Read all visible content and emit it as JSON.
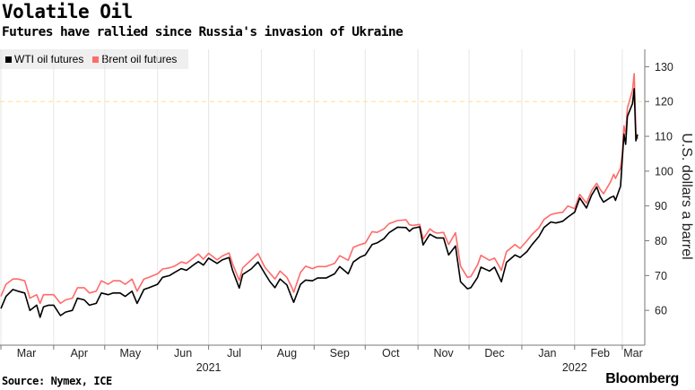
{
  "title": "Volatile Oil",
  "subtitle": "Futures have rallied since Russia's invasion of Ukraine",
  "source": "Source: Nymex, ICE",
  "brand": "Bloomberg",
  "colors": {
    "wti": "#000000",
    "brent": "#ff6b6b",
    "reference_line": "#ffe08a",
    "grid": "#e6e6e6"
  },
  "chart_data": {
    "type": "line",
    "title": "Volatile Oil",
    "subtitle": "Futures have rallied since Russia's invasion of Ukraine",
    "ylabel": "U.S. dollars a barrel",
    "ylim": [
      50,
      135
    ],
    "yticks": [
      60,
      70,
      80,
      90,
      100,
      110,
      120,
      130
    ],
    "y_axis_side": "right",
    "reference_line": 120,
    "grid": "vertical",
    "legend": "top-left",
    "xlim": [
      "2021-03-01",
      "2022-03-10"
    ],
    "month_ticks": [
      {
        "label": "Mar",
        "date": "2021-03-01"
      },
      {
        "label": "Apr",
        "date": "2021-04-01"
      },
      {
        "label": "May",
        "date": "2021-05-01"
      },
      {
        "label": "Jun",
        "date": "2021-06-01"
      },
      {
        "label": "Jul",
        "date": "2021-07-01"
      },
      {
        "label": "Aug",
        "date": "2021-08-01"
      },
      {
        "label": "Sep",
        "date": "2021-09-01"
      },
      {
        "label": "Oct",
        "date": "2021-10-01"
      },
      {
        "label": "Nov",
        "date": "2021-11-01"
      },
      {
        "label": "Dec",
        "date": "2021-12-01"
      },
      {
        "label": "Jan",
        "date": "2022-01-01"
      },
      {
        "label": "Feb",
        "date": "2022-02-01"
      },
      {
        "label": "Mar",
        "date": "2022-03-01"
      }
    ],
    "year_labels": [
      {
        "label": "2021",
        "date": "2021-07-01"
      },
      {
        "label": "2022",
        "date": "2022-02-01"
      }
    ],
    "series": [
      {
        "name": "WTI oil futures",
        "color": "#000000",
        "points": [
          [
            "2021-03-01",
            60.5
          ],
          [
            "2021-03-04",
            64
          ],
          [
            "2021-03-08",
            66
          ],
          [
            "2021-03-11",
            65.5
          ],
          [
            "2021-03-15",
            65
          ],
          [
            "2021-03-18",
            60
          ],
          [
            "2021-03-22",
            61.5
          ],
          [
            "2021-03-24",
            58
          ],
          [
            "2021-03-26",
            61
          ],
          [
            "2021-03-29",
            61.5
          ],
          [
            "2021-04-01",
            61.5
          ],
          [
            "2021-04-05",
            58.5
          ],
          [
            "2021-04-08",
            59.5
          ],
          [
            "2021-04-12",
            60
          ],
          [
            "2021-04-15",
            63.5
          ],
          [
            "2021-04-19",
            63
          ],
          [
            "2021-04-22",
            61.5
          ],
          [
            "2021-04-26",
            62
          ],
          [
            "2021-04-29",
            65
          ],
          [
            "2021-05-03",
            64.5
          ],
          [
            "2021-05-06",
            65
          ],
          [
            "2021-05-10",
            65
          ],
          [
            "2021-05-13",
            64
          ],
          [
            "2021-05-17",
            65.5
          ],
          [
            "2021-05-20",
            62
          ],
          [
            "2021-05-24",
            66
          ],
          [
            "2021-05-27",
            66.5
          ],
          [
            "2021-06-01",
            67.5
          ],
          [
            "2021-06-04",
            69.5
          ],
          [
            "2021-06-08",
            70
          ],
          [
            "2021-06-11",
            70.9
          ],
          [
            "2021-06-15",
            72
          ],
          [
            "2021-06-18",
            71.5
          ],
          [
            "2021-06-22",
            73
          ],
          [
            "2021-06-25",
            74
          ],
          [
            "2021-06-28",
            73
          ],
          [
            "2021-07-01",
            75
          ],
          [
            "2021-07-06",
            73.5
          ],
          [
            "2021-07-09",
            74.5
          ],
          [
            "2021-07-13",
            75.2
          ],
          [
            "2021-07-15",
            71.6
          ],
          [
            "2021-07-19",
            66.4
          ],
          [
            "2021-07-21",
            70.3
          ],
          [
            "2021-07-26",
            71.9
          ],
          [
            "2021-07-30",
            73.9
          ],
          [
            "2021-08-03",
            70.6
          ],
          [
            "2021-08-06",
            68.3
          ],
          [
            "2021-08-09",
            66.5
          ],
          [
            "2021-08-12",
            69
          ],
          [
            "2021-08-16",
            67.3
          ],
          [
            "2021-08-19",
            63.5
          ],
          [
            "2021-08-20",
            62.3
          ],
          [
            "2021-08-24",
            67.5
          ],
          [
            "2021-08-27",
            68.7
          ],
          [
            "2021-08-31",
            68.5
          ],
          [
            "2021-09-03",
            69.3
          ],
          [
            "2021-09-08",
            69.3
          ],
          [
            "2021-09-13",
            70.5
          ],
          [
            "2021-09-16",
            72.6
          ],
          [
            "2021-09-21",
            70.5
          ],
          [
            "2021-09-24",
            73.9
          ],
          [
            "2021-09-28",
            75.3
          ],
          [
            "2021-10-01",
            75.9
          ],
          [
            "2021-10-05",
            78.9
          ],
          [
            "2021-10-08",
            79.4
          ],
          [
            "2021-10-12",
            80.6
          ],
          [
            "2021-10-15",
            82.3
          ],
          [
            "2021-10-20",
            83.9
          ],
          [
            "2021-10-25",
            83.8
          ],
          [
            "2021-10-27",
            82.7
          ],
          [
            "2021-10-29",
            83.6
          ],
          [
            "2021-11-02",
            84
          ],
          [
            "2021-11-04",
            78.8
          ],
          [
            "2021-11-08",
            81.9
          ],
          [
            "2021-11-10",
            81.3
          ],
          [
            "2021-11-12",
            80.8
          ],
          [
            "2021-11-16",
            80.8
          ],
          [
            "2021-11-19",
            75.9
          ],
          [
            "2021-11-23",
            78.5
          ],
          [
            "2021-11-26",
            68.2
          ],
          [
            "2021-11-30",
            66.2
          ],
          [
            "2021-12-02",
            66.5
          ],
          [
            "2021-12-06",
            69.5
          ],
          [
            "2021-12-08",
            72.4
          ],
          [
            "2021-12-13",
            71.3
          ],
          [
            "2021-12-16",
            72.4
          ],
          [
            "2021-12-20",
            68.2
          ],
          [
            "2021-12-23",
            73.8
          ],
          [
            "2021-12-28",
            75.9
          ],
          [
            "2021-12-31",
            75.2
          ],
          [
            "2022-01-04",
            76.9
          ],
          [
            "2022-01-07",
            78.9
          ],
          [
            "2022-01-11",
            81.2
          ],
          [
            "2022-01-14",
            83.8
          ],
          [
            "2022-01-18",
            85.4
          ],
          [
            "2022-01-21",
            85.1
          ],
          [
            "2022-01-25",
            85.6
          ],
          [
            "2022-01-28",
            86.8
          ],
          [
            "2022-02-01",
            88.2
          ],
          [
            "2022-02-04",
            92.3
          ],
          [
            "2022-02-08",
            89.4
          ],
          [
            "2022-02-11",
            93.1
          ],
          [
            "2022-02-14",
            95.5
          ],
          [
            "2022-02-16",
            92.7
          ],
          [
            "2022-02-18",
            91.1
          ],
          [
            "2022-02-22",
            92.4
          ],
          [
            "2022-02-24",
            92.8
          ],
          [
            "2022-02-25",
            91.6
          ],
          [
            "2022-02-28",
            95.7
          ],
          [
            "2022-03-01",
            103.4
          ],
          [
            "2022-03-02",
            110.6
          ],
          [
            "2022-03-03",
            107.7
          ],
          [
            "2022-03-04",
            115.7
          ],
          [
            "2022-03-07",
            119.4
          ],
          [
            "2022-03-08",
            123.7
          ],
          [
            "2022-03-09",
            108.7
          ],
          [
            "2022-03-10",
            110.5
          ]
        ]
      },
      {
        "name": "Brent oil futures",
        "color": "#ff6b6b",
        "points": [
          [
            "2021-03-01",
            64
          ],
          [
            "2021-03-04",
            67.5
          ],
          [
            "2021-03-08",
            69
          ],
          [
            "2021-03-11",
            69
          ],
          [
            "2021-03-15",
            68.5
          ],
          [
            "2021-03-18",
            63.5
          ],
          [
            "2021-03-22",
            64.5
          ],
          [
            "2021-03-24",
            62
          ],
          [
            "2021-03-26",
            64.5
          ],
          [
            "2021-03-29",
            64.5
          ],
          [
            "2021-04-01",
            64.5
          ],
          [
            "2021-04-05",
            62
          ],
          [
            "2021-04-08",
            63
          ],
          [
            "2021-04-12",
            63.5
          ],
          [
            "2021-04-15",
            66.5
          ],
          [
            "2021-04-19",
            66.5
          ],
          [
            "2021-04-22",
            65
          ],
          [
            "2021-04-26",
            65.5
          ],
          [
            "2021-04-29",
            68.5
          ],
          [
            "2021-05-03",
            67.5
          ],
          [
            "2021-05-06",
            68.5
          ],
          [
            "2021-05-10",
            68.5
          ],
          [
            "2021-05-13",
            67.5
          ],
          [
            "2021-05-17",
            69
          ],
          [
            "2021-05-20",
            65.5
          ],
          [
            "2021-05-24",
            69
          ],
          [
            "2021-05-27",
            69.5
          ],
          [
            "2021-06-01",
            70.5
          ],
          [
            "2021-06-04",
            71.9
          ],
          [
            "2021-06-08",
            72.2
          ],
          [
            "2021-06-11",
            72.7
          ],
          [
            "2021-06-15",
            73.9
          ],
          [
            "2021-06-18",
            73.5
          ],
          [
            "2021-06-22",
            75
          ],
          [
            "2021-06-25",
            76.2
          ],
          [
            "2021-06-28",
            74.7
          ],
          [
            "2021-07-01",
            76.4
          ],
          [
            "2021-07-06",
            74.5
          ],
          [
            "2021-07-09",
            75.6
          ],
          [
            "2021-07-13",
            76.5
          ],
          [
            "2021-07-15",
            73.5
          ],
          [
            "2021-07-19",
            68.6
          ],
          [
            "2021-07-21",
            72.2
          ],
          [
            "2021-07-26",
            74.5
          ],
          [
            "2021-07-30",
            76.3
          ],
          [
            "2021-08-03",
            72.4
          ],
          [
            "2021-08-06",
            70.7
          ],
          [
            "2021-08-09",
            69
          ],
          [
            "2021-08-12",
            71.3
          ],
          [
            "2021-08-16",
            69.5
          ],
          [
            "2021-08-19",
            66.5
          ],
          [
            "2021-08-20",
            65.2
          ],
          [
            "2021-08-24",
            70.9
          ],
          [
            "2021-08-27",
            72.7
          ],
          [
            "2021-08-31",
            72
          ],
          [
            "2021-09-03",
            72.6
          ],
          [
            "2021-09-08",
            72.6
          ],
          [
            "2021-09-13",
            73.5
          ],
          [
            "2021-09-16",
            75.7
          ],
          [
            "2021-09-21",
            74.4
          ],
          [
            "2021-09-24",
            78.1
          ],
          [
            "2021-09-28",
            78.9
          ],
          [
            "2021-10-01",
            79.3
          ],
          [
            "2021-10-05",
            82.6
          ],
          [
            "2021-10-08",
            82.4
          ],
          [
            "2021-10-12",
            83.4
          ],
          [
            "2021-10-15",
            84.9
          ],
          [
            "2021-10-20",
            85.8
          ],
          [
            "2021-10-25",
            86
          ],
          [
            "2021-10-27",
            84.6
          ],
          [
            "2021-10-29",
            84.4
          ],
          [
            "2021-11-02",
            84.7
          ],
          [
            "2021-11-04",
            80.5
          ],
          [
            "2021-11-08",
            83.4
          ],
          [
            "2021-11-10",
            82.6
          ],
          [
            "2021-11-12",
            82.2
          ],
          [
            "2021-11-16",
            82.4
          ],
          [
            "2021-11-19",
            78.9
          ],
          [
            "2021-11-23",
            82.3
          ],
          [
            "2021-11-26",
            72.7
          ],
          [
            "2021-11-30",
            69.5
          ],
          [
            "2021-12-02",
            69.7
          ],
          [
            "2021-12-06",
            73.1
          ],
          [
            "2021-12-08",
            75.8
          ],
          [
            "2021-12-13",
            74.4
          ],
          [
            "2021-12-16",
            75
          ],
          [
            "2021-12-20",
            71.5
          ],
          [
            "2021-12-23",
            76.9
          ],
          [
            "2021-12-28",
            78.9
          ],
          [
            "2021-12-31",
            77.8
          ],
          [
            "2022-01-04",
            80
          ],
          [
            "2022-01-07",
            81.8
          ],
          [
            "2022-01-11",
            83.7
          ],
          [
            "2022-01-14",
            86.1
          ],
          [
            "2022-01-18",
            87.5
          ],
          [
            "2022-01-21",
            87.9
          ],
          [
            "2022-01-25",
            88.2
          ],
          [
            "2022-01-28",
            90
          ],
          [
            "2022-02-01",
            89.2
          ],
          [
            "2022-02-04",
            93.3
          ],
          [
            "2022-02-08",
            90.8
          ],
          [
            "2022-02-11",
            94.4
          ],
          [
            "2022-02-14",
            96.5
          ],
          [
            "2022-02-16",
            94.8
          ],
          [
            "2022-02-18",
            93.5
          ],
          [
            "2022-02-22",
            96.8
          ],
          [
            "2022-02-24",
            99.1
          ],
          [
            "2022-02-25",
            97.9
          ],
          [
            "2022-02-28",
            100.9
          ],
          [
            "2022-03-01",
            105
          ],
          [
            "2022-03-02",
            113
          ],
          [
            "2022-03-03",
            110.5
          ],
          [
            "2022-03-04",
            118.1
          ],
          [
            "2022-03-07",
            123.2
          ],
          [
            "2022-03-08",
            128
          ],
          [
            "2022-03-09",
            111.1
          ],
          [
            "2022-03-10",
            109.3
          ]
        ]
      }
    ]
  }
}
